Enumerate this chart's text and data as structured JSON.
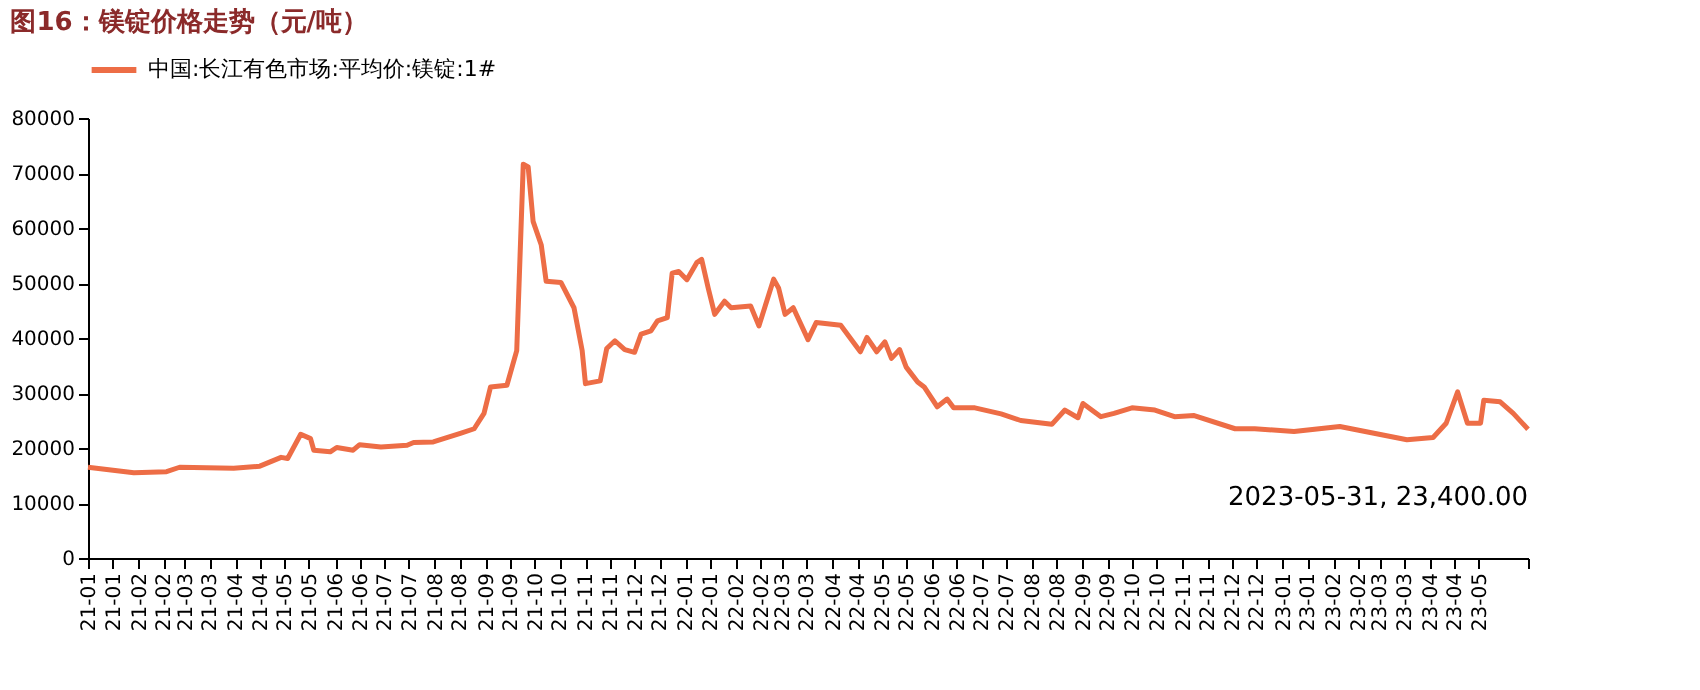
{
  "chart_data": {
    "type": "line",
    "title": "图16：镁锭价格走势（元/吨）",
    "legend": "top",
    "grid": false,
    "line_style": "solid",
    "x": [
      "2021-01-01",
      "2021-01-29",
      "2021-02-18",
      "2021-02-26",
      "2021-03-31",
      "2021-04-16",
      "2021-04-29",
      "2021-05-03",
      "2021-05-11",
      "2021-05-17",
      "2021-05-19",
      "2021-05-29",
      "2021-06-02",
      "2021-06-12",
      "2021-06-16",
      "2021-06-29",
      "2021-07-15",
      "2021-07-19",
      "2021-07-31",
      "2021-08-17",
      "2021-08-25",
      "2021-08-31",
      "2021-09-04",
      "2021-09-14",
      "2021-09-20",
      "2021-09-24",
      "2021-09-27",
      "2021-09-30",
      "2021-10-05",
      "2021-10-08",
      "2021-10-17",
      "2021-10-25",
      "2021-10-30",
      "2021-11-01",
      "2021-11-10",
      "2021-11-14",
      "2021-11-19",
      "2021-11-25",
      "2021-12-01",
      "2021-12-05",
      "2021-12-11",
      "2021-12-15",
      "2021-12-21",
      "2021-12-24",
      "2021-12-28",
      "2022-01-02",
      "2022-01-08",
      "2022-01-11",
      "2022-01-15",
      "2022-01-19",
      "2022-01-25",
      "2022-01-29",
      "2022-02-10",
      "2022-02-15",
      "2022-02-24",
      "2022-02-27",
      "2022-03-03",
      "2022-03-08",
      "2022-03-17",
      "2022-03-22",
      "2022-04-06",
      "2022-04-18",
      "2022-04-22",
      "2022-04-28",
      "2022-05-03",
      "2022-05-07",
      "2022-05-12",
      "2022-05-16",
      "2022-05-23",
      "2022-05-27",
      "2022-06-04",
      "2022-06-10",
      "2022-06-14",
      "2022-06-27",
      "2022-07-13",
      "2022-07-25",
      "2022-08-13",
      "2022-08-21",
      "2022-08-29",
      "2022-09-01",
      "2022-09-12",
      "2022-09-20",
      "2022-10-01",
      "2022-10-15",
      "2022-10-27",
      "2022-11-08",
      "2022-12-03",
      "2022-12-15",
      "2023-01-08",
      "2023-02-05",
      "2023-03-18",
      "2023-04-03",
      "2023-04-11",
      "2023-04-18",
      "2023-04-24",
      "2023-05-02",
      "2023-05-04",
      "2023-05-14",
      "2023-05-22",
      "2023-05-31"
    ],
    "series": [
      {
        "name": "中国:长江有色市场:平均价:镁锭:1#",
        "color": "#ed6d46",
        "values": [
          16500,
          15500,
          15700,
          16500,
          16300,
          16700,
          18300,
          18100,
          22500,
          21700,
          19600,
          19300,
          20100,
          19600,
          20600,
          20200,
          20500,
          21000,
          21100,
          22700,
          23500,
          26300,
          31100,
          31400,
          37700,
          71600,
          71100,
          61200,
          56900,
          50300,
          50100,
          45500,
          37700,
          31700,
          32200,
          38100,
          39500,
          37900,
          37400,
          40700,
          41300,
          43100,
          43700,
          51800,
          52100,
          50600,
          53700,
          54300,
          49100,
          44300,
          46700,
          45500,
          45800,
          42200,
          50700,
          49100,
          44300,
          45500,
          39700,
          42800,
          42300,
          37500,
          40100,
          37500,
          39300,
          36300,
          37900,
          34700,
          32000,
          31100,
          27500,
          28900,
          27300,
          27300,
          26200,
          25000,
          24300,
          26900,
          25500,
          28100,
          25700,
          26300,
          27300,
          26900,
          25700,
          25900,
          23500,
          23500,
          23000,
          23900,
          21500,
          21900,
          24500,
          30200,
          24500,
          24500,
          28700,
          28400,
          26300,
          23400
        ]
      }
    ],
    "ylim": [
      0,
      80000
    ],
    "yticks": [
      0,
      10000,
      20000,
      30000,
      40000,
      50000,
      60000,
      70000,
      80000
    ],
    "xlim": [
      "2021-01-01",
      "2023-05-31"
    ],
    "xticks": [
      {
        "value": "2021-01-01",
        "label": "21-01"
      },
      {
        "value": "2021-01-16",
        "label": "21-01"
      },
      {
        "value": "2021-02-01",
        "label": "21-02"
      },
      {
        "value": "2021-02-16",
        "label": "21-02"
      },
      {
        "value": "2021-03-01",
        "label": "21-03"
      },
      {
        "value": "2021-03-16",
        "label": "21-03"
      },
      {
        "value": "2021-04-01",
        "label": "21-04"
      },
      {
        "value": "2021-04-16",
        "label": "21-04"
      },
      {
        "value": "2021-05-01",
        "label": "21-05"
      },
      {
        "value": "2021-05-16",
        "label": "21-05"
      },
      {
        "value": "2021-06-01",
        "label": "21-06"
      },
      {
        "value": "2021-06-16",
        "label": "21-06"
      },
      {
        "value": "2021-07-01",
        "label": "21-07"
      },
      {
        "value": "2021-07-16",
        "label": "21-07"
      },
      {
        "value": "2021-08-01",
        "label": "21-08"
      },
      {
        "value": "2021-08-16",
        "label": "21-08"
      },
      {
        "value": "2021-09-01",
        "label": "21-09"
      },
      {
        "value": "2021-09-16",
        "label": "21-09"
      },
      {
        "value": "2021-10-01",
        "label": "21-10"
      },
      {
        "value": "2021-10-16",
        "label": "21-10"
      },
      {
        "value": "2021-11-01",
        "label": "21-11"
      },
      {
        "value": "2021-11-16",
        "label": "21-11"
      },
      {
        "value": "2021-12-01",
        "label": "21-12"
      },
      {
        "value": "2021-12-16",
        "label": "21-12"
      },
      {
        "value": "2022-01-01",
        "label": "22-01"
      },
      {
        "value": "2022-01-16",
        "label": "22-01"
      },
      {
        "value": "2022-02-01",
        "label": "22-02"
      },
      {
        "value": "2022-02-16",
        "label": "22-02"
      },
      {
        "value": "2022-03-01",
        "label": "22-03"
      },
      {
        "value": "2022-03-16",
        "label": "22-03"
      },
      {
        "value": "2022-04-01",
        "label": "22-04"
      },
      {
        "value": "2022-04-16",
        "label": "22-04"
      },
      {
        "value": "2022-05-01",
        "label": "22-05"
      },
      {
        "value": "2022-05-16",
        "label": "22-05"
      },
      {
        "value": "2022-06-01",
        "label": "22-06"
      },
      {
        "value": "2022-06-16",
        "label": "22-06"
      },
      {
        "value": "2022-07-01",
        "label": "22-07"
      },
      {
        "value": "2022-07-16",
        "label": "22-07"
      },
      {
        "value": "2022-08-01",
        "label": "22-08"
      },
      {
        "value": "2022-08-16",
        "label": "22-08"
      },
      {
        "value": "2022-09-01",
        "label": "22-09"
      },
      {
        "value": "2022-09-16",
        "label": "22-09"
      },
      {
        "value": "2022-10-01",
        "label": "22-10"
      },
      {
        "value": "2022-10-16",
        "label": "22-10"
      },
      {
        "value": "2022-11-01",
        "label": "22-11"
      },
      {
        "value": "2022-11-16",
        "label": "22-11"
      },
      {
        "value": "2022-12-01",
        "label": "22-12"
      },
      {
        "value": "2022-12-16",
        "label": "22-12"
      },
      {
        "value": "2023-01-01",
        "label": "23-01"
      },
      {
        "value": "2023-01-16",
        "label": "23-01"
      },
      {
        "value": "2023-02-01",
        "label": "23-02"
      },
      {
        "value": "2023-02-16",
        "label": "23-02"
      },
      {
        "value": "2023-03-01",
        "label": "23-03"
      },
      {
        "value": "2023-03-16",
        "label": "23-03"
      },
      {
        "value": "2023-04-01",
        "label": "23-04"
      },
      {
        "value": "2023-04-16",
        "label": "23-04"
      },
      {
        "value": "2023-05-01",
        "label": "23-05"
      },
      {
        "value": "2023-05-31",
        "label": null
      }
    ],
    "annotations": [
      {
        "text": "2023-05-31, 23,400.00",
        "x": "2023-05-31",
        "y": 23400
      }
    ]
  }
}
